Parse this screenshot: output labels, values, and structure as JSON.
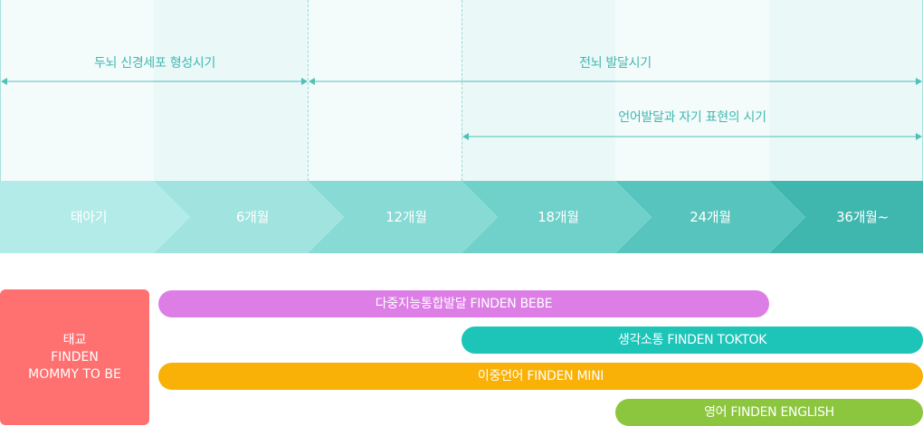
{
  "ranges": {
    "brain_cell": "두뇌 신경세포 형성시기",
    "whole_brain": "전뇌 발달시기",
    "language": "언어발달과 자기 표현의 시기"
  },
  "stages": [
    "태아기",
    "6개월",
    "12개월",
    "18개월",
    "24개월",
    "36개월~"
  ],
  "stage_colors": [
    "#b3ebe8",
    "#a0e3df",
    "#88dad4",
    "#70d1ca",
    "#57c5bd",
    "#3fb7ae"
  ],
  "prenatal": {
    "line1": "태교",
    "line2": "FINDEN",
    "line3": "MOMMY TO BE",
    "color": "#ff7070"
  },
  "programs": [
    {
      "label": "다중지능통합발달 FINDEN BEBE",
      "color": "#dd7ee6"
    },
    {
      "label": "생각소통 FINDEN TOKTOK",
      "color": "#1cc5b8"
    },
    {
      "label": "이중언어 FINDEN MINI",
      "color": "#f9b108"
    },
    {
      "label": "영어 FINDEN ENGLISH",
      "color": "#8cc63f"
    }
  ]
}
